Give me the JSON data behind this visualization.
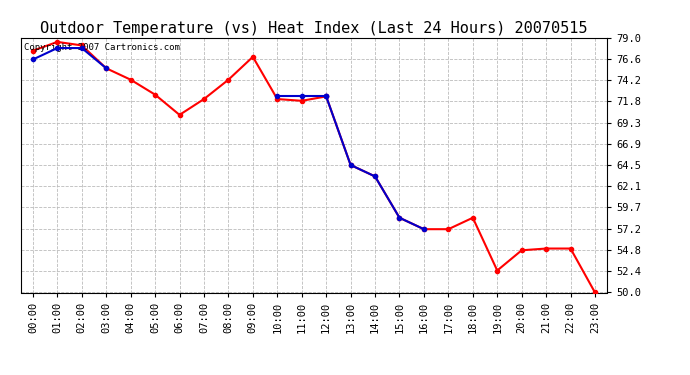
{
  "title": "Outdoor Temperature (vs) Heat Index (Last 24 Hours) 20070515",
  "copyright": "Copyright 2007 Cartronics.com",
  "x_labels": [
    "00:00",
    "01:00",
    "02:00",
    "03:00",
    "04:00",
    "05:00",
    "06:00",
    "07:00",
    "08:00",
    "09:00",
    "10:00",
    "11:00",
    "12:00",
    "13:00",
    "14:00",
    "15:00",
    "16:00",
    "17:00",
    "18:00",
    "19:00",
    "20:00",
    "21:00",
    "22:00",
    "23:00"
  ],
  "temp_data": [
    77.5,
    78.5,
    78.1,
    75.5,
    74.2,
    72.5,
    70.2,
    72.0,
    74.2,
    76.8,
    72.0,
    71.8,
    72.3,
    64.5,
    63.2,
    58.5,
    57.2,
    57.2,
    58.5,
    52.5,
    54.8,
    55.0,
    55.0,
    50.0
  ],
  "heat_segments": [
    {
      "x": [
        0,
        1,
        2,
        3
      ],
      "y": [
        76.5,
        77.8,
        77.8,
        75.5
      ]
    },
    {
      "x": [
        10,
        11,
        12
      ],
      "y": [
        72.3,
        72.3,
        72.3
      ]
    },
    {
      "x": [
        12,
        13,
        14,
        15,
        16
      ],
      "y": [
        72.3,
        64.5,
        63.2,
        58.5,
        57.2
      ]
    }
  ],
  "temp_color": "#ff0000",
  "heat_color": "#0000cc",
  "marker_size": 3,
  "line_width": 1.5,
  "ylim_min": 50.0,
  "ylim_max": 79.0,
  "yticks": [
    79.0,
    76.6,
    74.2,
    71.8,
    69.3,
    66.9,
    64.5,
    62.1,
    59.7,
    57.2,
    54.8,
    52.4,
    50.0
  ],
  "background_color": "#ffffff",
  "grid_color": "#bbbbbb",
  "title_fontsize": 11,
  "tick_fontsize": 7.5,
  "copyright_fontsize": 6.5
}
